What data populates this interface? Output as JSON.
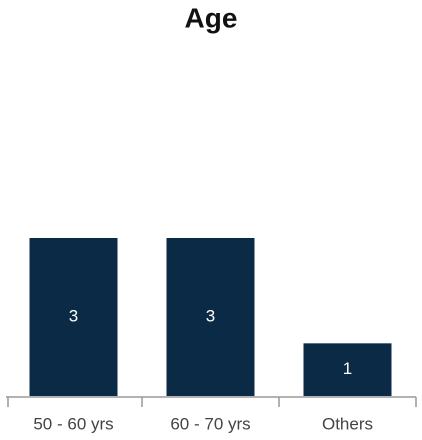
{
  "chart_data": {
    "type": "bar",
    "title": "Age",
    "categories": [
      "50 - 60 yrs",
      "60 - 70 yrs",
      "Others"
    ],
    "values": [
      3,
      3,
      1
    ],
    "color": "#0b2a45"
  }
}
